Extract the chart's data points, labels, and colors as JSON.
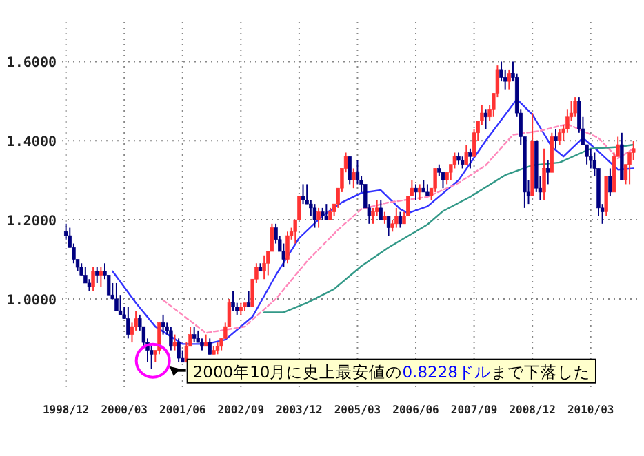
{
  "chart_data": {
    "type": "candlestick",
    "x": [
      "1998-12",
      "1999-01",
      "1999-02",
      "1999-03",
      "1999-04",
      "1999-05",
      "1999-06",
      "1999-07",
      "1999-08",
      "1999-09",
      "1999-10",
      "1999-11",
      "1999-12",
      "2000-01",
      "2000-02",
      "2000-03",
      "2000-04",
      "2000-05",
      "2000-06",
      "2000-07",
      "2000-08",
      "2000-09",
      "2000-10",
      "2000-11",
      "2000-12",
      "2001-01",
      "2001-02",
      "2001-03",
      "2001-04",
      "2001-05",
      "2001-06",
      "2001-07",
      "2001-08",
      "2001-09",
      "2001-10",
      "2001-11",
      "2001-12",
      "2002-01",
      "2002-02",
      "2002-03",
      "2002-04",
      "2002-05",
      "2002-06",
      "2002-07",
      "2002-08",
      "2002-09",
      "2002-10",
      "2002-11",
      "2002-12",
      "2003-01",
      "2003-02",
      "2003-03",
      "2003-04",
      "2003-05",
      "2003-06",
      "2003-07",
      "2003-08",
      "2003-09",
      "2003-10",
      "2003-11",
      "2003-12",
      "2004-01",
      "2004-02",
      "2004-03",
      "2004-04",
      "2004-05",
      "2004-06",
      "2004-07",
      "2004-08",
      "2004-09",
      "2004-10",
      "2004-11",
      "2004-12",
      "2005-01",
      "2005-02",
      "2005-03",
      "2005-04",
      "2005-05",
      "2005-06",
      "2005-07",
      "2005-08",
      "2005-09",
      "2005-10",
      "2005-11",
      "2005-12",
      "2006-01",
      "2006-02",
      "2006-03",
      "2006-04",
      "2006-05",
      "2006-06",
      "2006-07",
      "2006-08",
      "2006-09",
      "2006-10",
      "2006-11",
      "2006-12",
      "2007-01",
      "2007-02",
      "2007-03",
      "2007-04",
      "2007-05",
      "2007-06",
      "2007-07",
      "2007-08",
      "2007-09",
      "2007-10",
      "2007-11",
      "2007-12",
      "2008-01",
      "2008-02",
      "2008-03",
      "2008-04",
      "2008-05",
      "2008-06",
      "2008-07",
      "2008-08",
      "2008-09",
      "2008-10",
      "2008-11",
      "2008-12",
      "2009-01",
      "2009-02",
      "2009-03",
      "2009-04",
      "2009-05",
      "2009-06",
      "2009-07",
      "2009-08",
      "2009-09",
      "2009-10",
      "2009-11",
      "2009-12",
      "2010-01",
      "2010-02",
      "2010-03",
      "2010-04",
      "2010-05",
      "2010-06",
      "2010-07",
      "2010-08",
      "2010-09",
      "2010-10",
      "2010-11",
      "2010-12",
      "2011-01",
      "2011-02"
    ],
    "ohlc": [
      [
        1.17,
        1.19,
        1.15,
        1.16
      ],
      [
        1.16,
        1.18,
        1.13,
        1.13
      ],
      [
        1.13,
        1.14,
        1.09,
        1.1
      ],
      [
        1.1,
        1.1,
        1.07,
        1.08
      ],
      [
        1.08,
        1.09,
        1.06,
        1.06
      ],
      [
        1.06,
        1.08,
        1.04,
        1.04
      ],
      [
        1.04,
        1.05,
        1.02,
        1.03
      ],
      [
        1.03,
        1.08,
        1.02,
        1.07
      ],
      [
        1.07,
        1.08,
        1.04,
        1.06
      ],
      [
        1.06,
        1.08,
        1.03,
        1.07
      ],
      [
        1.07,
        1.09,
        1.05,
        1.06
      ],
      [
        1.06,
        1.06,
        1.01,
        1.01
      ],
      [
        1.01,
        1.04,
        1.0,
        1.0
      ],
      [
        1.0,
        1.04,
        0.97,
        0.97
      ],
      [
        0.97,
        1.01,
        0.96,
        0.96
      ],
      [
        0.96,
        0.98,
        0.95,
        0.95
      ],
      [
        0.95,
        0.98,
        0.9,
        0.91
      ],
      [
        0.91,
        0.94,
        0.89,
        0.93
      ],
      [
        0.93,
        0.97,
        0.92,
        0.95
      ],
      [
        0.95,
        0.96,
        0.92,
        0.93
      ],
      [
        0.93,
        0.93,
        0.88,
        0.89
      ],
      [
        0.89,
        0.9,
        0.84,
        0.87
      ],
      [
        0.87,
        0.88,
        0.8228,
        0.86
      ],
      [
        0.86,
        0.87,
        0.84,
        0.87
      ],
      [
        0.87,
        0.94,
        0.86,
        0.94
      ],
      [
        0.94,
        0.96,
        0.91,
        0.93
      ],
      [
        0.93,
        0.94,
        0.91,
        0.92
      ],
      [
        0.92,
        0.93,
        0.87,
        0.88
      ],
      [
        0.88,
        0.91,
        0.87,
        0.89
      ],
      [
        0.89,
        0.9,
        0.84,
        0.85
      ],
      [
        0.85,
        0.87,
        0.84,
        0.84
      ],
      [
        0.84,
        0.89,
        0.84,
        0.88
      ],
      [
        0.88,
        0.93,
        0.88,
        0.91
      ],
      [
        0.91,
        0.93,
        0.89,
        0.9
      ],
      [
        0.9,
        0.92,
        0.89,
        0.89
      ],
      [
        0.89,
        0.9,
        0.87,
        0.88
      ],
      [
        0.88,
        0.91,
        0.88,
        0.89
      ],
      [
        0.89,
        0.9,
        0.86,
        0.86
      ],
      [
        0.86,
        0.88,
        0.86,
        0.87
      ],
      [
        0.87,
        0.89,
        0.86,
        0.88
      ],
      [
        0.88,
        0.9,
        0.87,
        0.9
      ],
      [
        0.9,
        0.94,
        0.9,
        0.93
      ],
      [
        0.93,
        1.0,
        0.93,
        0.99
      ],
      [
        0.99,
        1.02,
        0.97,
        0.98
      ],
      [
        0.98,
        0.99,
        0.96,
        0.97
      ],
      [
        0.97,
        0.99,
        0.96,
        0.98
      ],
      [
        0.98,
        0.99,
        0.97,
        0.99
      ],
      [
        0.99,
        1.02,
        0.98,
        0.98
      ],
      [
        0.98,
        1.05,
        0.98,
        1.05
      ],
      [
        1.05,
        1.09,
        1.04,
        1.08
      ],
      [
        1.08,
        1.09,
        1.07,
        1.07
      ],
      [
        1.07,
        1.11,
        1.05,
        1.09
      ],
      [
        1.09,
        1.12,
        1.06,
        1.12
      ],
      [
        1.12,
        1.19,
        1.12,
        1.18
      ],
      [
        1.18,
        1.19,
        1.14,
        1.15
      ],
      [
        1.15,
        1.16,
        1.12,
        1.12
      ],
      [
        1.12,
        1.14,
        1.08,
        1.1
      ],
      [
        1.1,
        1.17,
        1.09,
        1.16
      ],
      [
        1.16,
        1.18,
        1.15,
        1.17
      ],
      [
        1.17,
        1.2,
        1.14,
        1.2
      ],
      [
        1.2,
        1.26,
        1.2,
        1.26
      ],
      [
        1.26,
        1.29,
        1.24,
        1.25
      ],
      [
        1.25,
        1.29,
        1.24,
        1.24
      ],
      [
        1.24,
        1.25,
        1.21,
        1.23
      ],
      [
        1.23,
        1.24,
        1.18,
        1.2
      ],
      [
        1.2,
        1.23,
        1.18,
        1.22
      ],
      [
        1.22,
        1.23,
        1.2,
        1.21
      ],
      [
        1.21,
        1.24,
        1.2,
        1.2
      ],
      [
        1.2,
        1.23,
        1.2,
        1.22
      ],
      [
        1.22,
        1.24,
        1.21,
        1.24
      ],
      [
        1.24,
        1.28,
        1.23,
        1.28
      ],
      [
        1.28,
        1.33,
        1.27,
        1.33
      ],
      [
        1.33,
        1.37,
        1.32,
        1.36
      ],
      [
        1.36,
        1.36,
        1.29,
        1.3
      ],
      [
        1.3,
        1.33,
        1.28,
        1.32
      ],
      [
        1.32,
        1.35,
        1.29,
        1.3
      ],
      [
        1.3,
        1.31,
        1.27,
        1.29
      ],
      [
        1.29,
        1.29,
        1.23,
        1.23
      ],
      [
        1.23,
        1.24,
        1.19,
        1.21
      ],
      [
        1.21,
        1.23,
        1.19,
        1.22
      ],
      [
        1.22,
        1.25,
        1.21,
        1.23
      ],
      [
        1.23,
        1.25,
        1.2,
        1.2
      ],
      [
        1.2,
        1.22,
        1.19,
        1.21
      ],
      [
        1.21,
        1.21,
        1.16,
        1.18
      ],
      [
        1.18,
        1.2,
        1.17,
        1.19
      ],
      [
        1.19,
        1.23,
        1.18,
        1.21
      ],
      [
        1.21,
        1.22,
        1.18,
        1.19
      ],
      [
        1.19,
        1.22,
        1.19,
        1.21
      ],
      [
        1.21,
        1.26,
        1.21,
        1.26
      ],
      [
        1.26,
        1.3,
        1.26,
        1.28
      ],
      [
        1.28,
        1.29,
        1.25,
        1.27
      ],
      [
        1.27,
        1.29,
        1.25,
        1.28
      ],
      [
        1.28,
        1.3,
        1.27,
        1.27
      ],
      [
        1.27,
        1.29,
        1.26,
        1.26
      ],
      [
        1.26,
        1.28,
        1.25,
        1.28
      ],
      [
        1.28,
        1.33,
        1.27,
        1.33
      ],
      [
        1.33,
        1.34,
        1.31,
        1.32
      ],
      [
        1.32,
        1.32,
        1.28,
        1.3
      ],
      [
        1.3,
        1.32,
        1.29,
        1.32
      ],
      [
        1.32,
        1.34,
        1.3,
        1.34
      ],
      [
        1.34,
        1.37,
        1.33,
        1.36
      ],
      [
        1.36,
        1.37,
        1.34,
        1.35
      ],
      [
        1.35,
        1.36,
        1.33,
        1.34
      ],
      [
        1.34,
        1.39,
        1.34,
        1.37
      ],
      [
        1.37,
        1.38,
        1.33,
        1.36
      ],
      [
        1.36,
        1.43,
        1.36,
        1.42
      ],
      [
        1.42,
        1.45,
        1.4,
        1.45
      ],
      [
        1.45,
        1.49,
        1.44,
        1.47
      ],
      [
        1.47,
        1.48,
        1.43,
        1.46
      ],
      [
        1.46,
        1.49,
        1.45,
        1.48
      ],
      [
        1.48,
        1.52,
        1.46,
        1.52
      ],
      [
        1.52,
        1.59,
        1.51,
        1.58
      ],
      [
        1.58,
        1.6,
        1.55,
        1.56
      ],
      [
        1.56,
        1.58,
        1.53,
        1.55
      ],
      [
        1.55,
        1.58,
        1.53,
        1.57
      ],
      [
        1.57,
        1.6,
        1.55,
        1.56
      ],
      [
        1.56,
        1.57,
        1.46,
        1.47
      ],
      [
        1.47,
        1.48,
        1.39,
        1.41
      ],
      [
        1.41,
        1.41,
        1.23,
        1.27
      ],
      [
        1.27,
        1.3,
        1.24,
        1.26
      ],
      [
        1.26,
        1.47,
        1.26,
        1.4
      ],
      [
        1.4,
        1.4,
        1.27,
        1.28
      ],
      [
        1.28,
        1.31,
        1.25,
        1.27
      ],
      [
        1.27,
        1.38,
        1.25,
        1.33
      ],
      [
        1.33,
        1.35,
        1.29,
        1.32
      ],
      [
        1.32,
        1.42,
        1.32,
        1.41
      ],
      [
        1.41,
        1.43,
        1.38,
        1.4
      ],
      [
        1.4,
        1.43,
        1.39,
        1.42
      ],
      [
        1.42,
        1.44,
        1.4,
        1.43
      ],
      [
        1.43,
        1.48,
        1.42,
        1.46
      ],
      [
        1.46,
        1.5,
        1.45,
        1.47
      ],
      [
        1.47,
        1.51,
        1.46,
        1.5
      ],
      [
        1.5,
        1.51,
        1.42,
        1.43
      ],
      [
        1.43,
        1.46,
        1.39,
        1.39
      ],
      [
        1.39,
        1.39,
        1.34,
        1.36
      ],
      [
        1.36,
        1.38,
        1.33,
        1.35
      ],
      [
        1.35,
        1.37,
        1.31,
        1.33
      ],
      [
        1.33,
        1.33,
        1.21,
        1.23
      ],
      [
        1.23,
        1.24,
        1.19,
        1.22
      ],
      [
        1.22,
        1.31,
        1.21,
        1.31
      ],
      [
        1.31,
        1.33,
        1.26,
        1.27
      ],
      [
        1.27,
        1.37,
        1.27,
        1.36
      ],
      [
        1.36,
        1.41,
        1.36,
        1.39
      ],
      [
        1.39,
        1.42,
        1.3,
        1.3
      ],
      [
        1.3,
        1.34,
        1.29,
        1.34
      ],
      [
        1.34,
        1.37,
        1.29,
        1.37
      ],
      [
        1.37,
        1.4,
        1.35,
        1.38
      ]
    ],
    "colors": [
      "#000080",
      "#000080",
      "#000080",
      "#000080",
      "#000080",
      "#000080",
      "#000080",
      "#ff3333",
      "#000080",
      "#ff3333",
      "#000080",
      "#000080",
      "#000080",
      "#000080",
      "#000080",
      "#000080",
      "#000080",
      "#ff3333",
      "#ff3333",
      "#000080",
      "#000080",
      "#000080",
      "#000080",
      "#ff3333",
      "#ff3333",
      "#000080",
      "#000080",
      "#000080",
      "#ff3333",
      "#000080",
      "#000080",
      "#ff3333",
      "#ff3333",
      "#000080",
      "#000080",
      "#000080",
      "#ff3333",
      "#000080",
      "#ff3333",
      "#ff3333",
      "#ff3333",
      "#ff3333",
      "#ff3333",
      "#000080",
      "#000080",
      "#ff3333",
      "#ff3333",
      "#000080",
      "#ff3333",
      "#ff3333",
      "#000080",
      "#ff3333",
      "#ff3333",
      "#ff3333",
      "#000080",
      "#000080",
      "#000080",
      "#ff3333",
      "#ff3333",
      "#ff3333",
      "#ff3333",
      "#000080",
      "#000080",
      "#000080",
      "#000080",
      "#ff3333",
      "#000080",
      "#000080",
      "#ff3333",
      "#ff3333",
      "#ff3333",
      "#ff3333",
      "#ff3333",
      "#000080",
      "#ff3333",
      "#000080",
      "#000080",
      "#000080",
      "#000080",
      "#ff3333",
      "#ff3333",
      "#000080",
      "#ff3333",
      "#000080",
      "#ff3333",
      "#ff3333",
      "#000080",
      "#ff3333",
      "#ff3333",
      "#ff3333",
      "#000080",
      "#ff3333",
      "#000080",
      "#000080",
      "#ff3333",
      "#ff3333",
      "#000080",
      "#000080",
      "#ff3333",
      "#ff3333",
      "#ff3333",
      "#000080",
      "#000080",
      "#ff3333",
      "#000080",
      "#ff3333",
      "#ff3333",
      "#ff3333",
      "#000080",
      "#ff3333",
      "#ff3333",
      "#ff3333",
      "#000080",
      "#000080",
      "#ff3333",
      "#000080",
      "#000080",
      "#000080",
      "#000080",
      "#000080",
      "#ff3333",
      "#000080",
      "#000080",
      "#ff3333",
      "#000080",
      "#ff3333",
      "#000080",
      "#ff3333",
      "#ff3333",
      "#ff3333",
      "#ff3333",
      "#ff3333",
      "#000080",
      "#000080",
      "#000080",
      "#000080",
      "#000080",
      "#000080",
      "#000080",
      "#ff3333",
      "#000080",
      "#ff3333",
      "#ff3333",
      "#000080",
      "#ff3333",
      "#ff3333",
      "#ff3333"
    ],
    "series": [
      {
        "type": "line",
        "color": "#3333ff",
        "line_style": "solid",
        "x": [
          "1999-12",
          "2000-06",
          "2000-11",
          "2001-06",
          "2001-12",
          "2002-05",
          "2002-12",
          "2003-06",
          "2003-12",
          "2004-06",
          "2004-11",
          "2005-04",
          "2005-09",
          "2006-02",
          "2006-04",
          "2006-09",
          "2007-05",
          "2007-12",
          "2008-08",
          "2008-12",
          "2009-05",
          "2009-08",
          "2010-01",
          "2010-05",
          "2010-10",
          "2011-02"
        ],
        "values": [
          1.07,
          0.99,
          0.93,
          0.886,
          0.886,
          0.897,
          0.955,
          1.06,
          1.154,
          1.21,
          1.244,
          1.268,
          1.275,
          1.227,
          1.217,
          1.234,
          1.3,
          1.4,
          1.505,
          1.466,
          1.384,
          1.36,
          1.407,
          1.373,
          1.327,
          1.33
        ]
      },
      {
        "type": "line",
        "color": "#ff88bb",
        "line_style": "dashed",
        "x": [
          "2001-01",
          "2001-12",
          "2002-10",
          "2003-06",
          "2004-02",
          "2004-10",
          "2005-04",
          "2005-11",
          "2006-09",
          "2007-05",
          "2007-12",
          "2008-07",
          "2009-02",
          "2009-09",
          "2010-05",
          "2010-10",
          "2011-02"
        ],
        "values": [
          0.997,
          0.914,
          0.93,
          1.0,
          1.095,
          1.175,
          1.227,
          1.244,
          1.258,
          1.293,
          1.338,
          1.415,
          1.425,
          1.442,
          1.407,
          1.355,
          1.38
        ]
      },
      {
        "type": "line",
        "color": "#339988",
        "line_style": "solid",
        "x": [
          "2003-03",
          "2003-08",
          "2004-02",
          "2004-09",
          "2005-04",
          "2005-11",
          "2006-09",
          "2007-01",
          "2007-08",
          "2008-05",
          "2008-12",
          "2009-07",
          "2010-03",
          "2010-10",
          "2011-02"
        ],
        "values": [
          0.966,
          0.966,
          0.99,
          1.025,
          1.083,
          1.13,
          1.188,
          1.222,
          1.258,
          1.313,
          1.338,
          1.345,
          1.38,
          1.384,
          1.39
        ]
      }
    ],
    "xlim": [
      "1998-11",
      "2011-04"
    ],
    "ylim": [
      0.77,
      1.7
    ],
    "xticks": [
      {
        "value": "1998-12",
        "label": "1998/12"
      },
      {
        "value": "2000-03",
        "label": "2000/03"
      },
      {
        "value": "2001-06",
        "label": "2001/06"
      },
      {
        "value": "2002-09",
        "label": "2002/09"
      },
      {
        "value": "2003-12",
        "label": "2003/12"
      },
      {
        "value": "2005-03",
        "label": "2005/03"
      },
      {
        "value": "2006-06",
        "label": "2006/06"
      },
      {
        "value": "2007-09",
        "label": "2007/09"
      },
      {
        "value": "2008-12",
        "label": "2008/12"
      },
      {
        "value": "2010-03",
        "label": "2010/03"
      }
    ],
    "yticks": [
      {
        "value": 1.0,
        "label": "1.0000"
      },
      {
        "value": 1.2,
        "label": "1.2000"
      },
      {
        "value": 1.4,
        "label": "1.4000"
      },
      {
        "value": 1.6,
        "label": "1.6000"
      }
    ],
    "grid": true,
    "annotations": [
      {
        "text": "2000年10月に史上最安値の0.8228ドルまで下落した",
        "x": "2000-10",
        "y": 0.8228
      }
    ]
  }
}
